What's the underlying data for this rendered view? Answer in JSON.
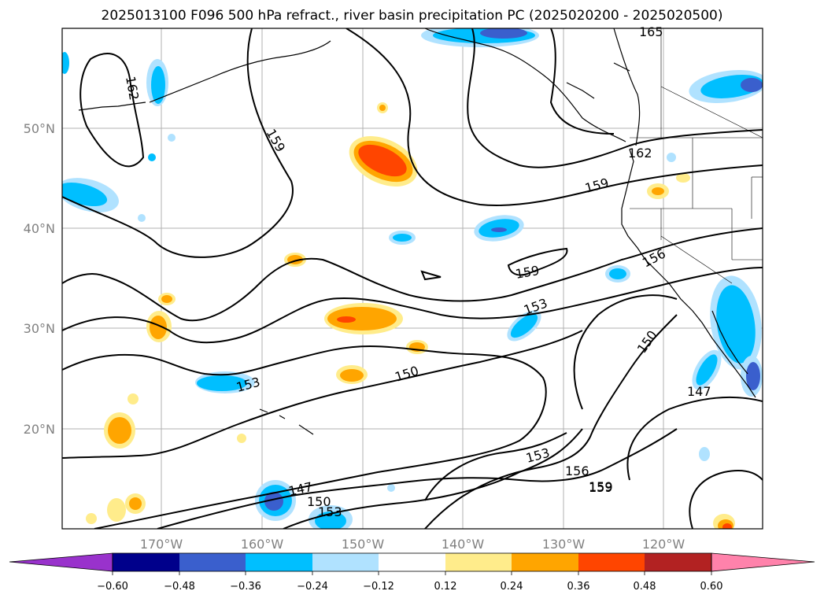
{
  "title": "2025013100 F096 500 hPa refract., river basin precipitation PC (2025020200 - 2025020500)",
  "map": {
    "lat_ticks": [
      "50°N",
      "40°N",
      "30°N",
      "20°N"
    ],
    "lon_ticks": [
      "170°W",
      "160°W",
      "150°W",
      "140°W",
      "130°W",
      "120°W"
    ],
    "contour_labels": [
      "162",
      "159",
      "159",
      "162",
      "159",
      "156",
      "159",
      "153",
      "150",
      "153",
      "150",
      "147",
      "147",
      "150",
      "153",
      "153",
      "156",
      "159",
      "165"
    ],
    "grid": true
  },
  "colorbar": {
    "ticks": [
      "−0.60",
      "−0.48",
      "−0.36",
      "−0.24",
      "−0.12",
      "0.12",
      "0.24",
      "0.36",
      "0.48",
      "0.60"
    ],
    "colors": [
      "#9932cc",
      "#00008b",
      "#3a5fcd",
      "#00bfff",
      "#b0e2ff",
      "#ffffff",
      "#ffec8b",
      "#ffa500",
      "#ff4500",
      "#b22222",
      "#ff82ab"
    ],
    "extend": "both"
  }
}
